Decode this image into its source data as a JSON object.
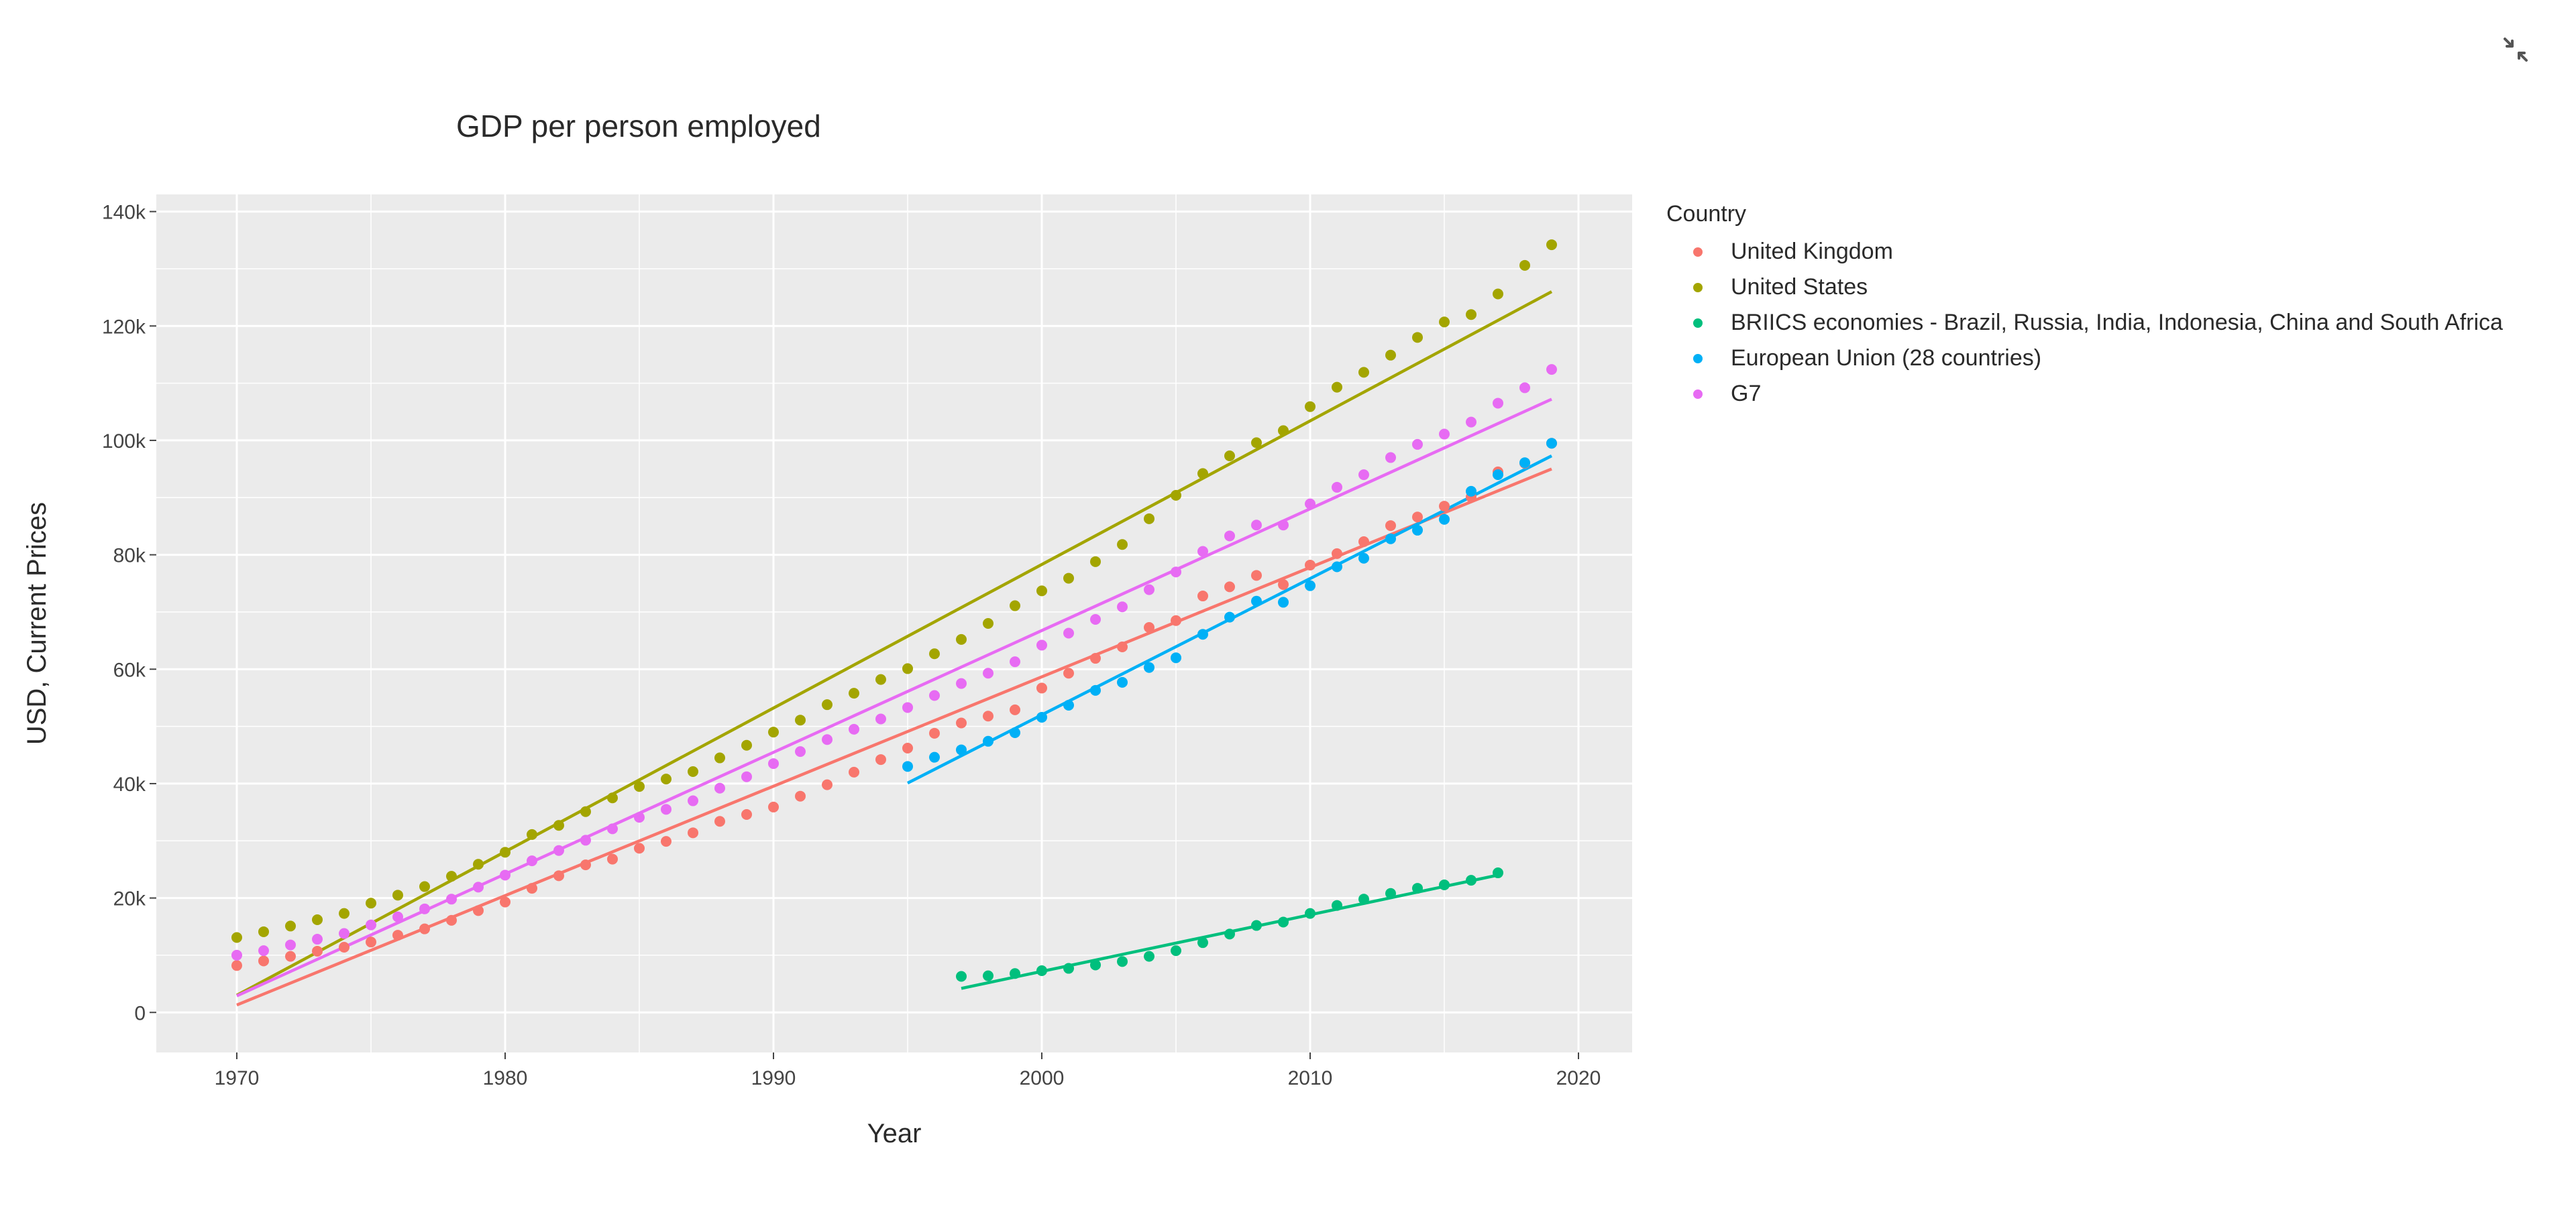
{
  "ui": {
    "exit_fullscreen_icon": "exit-fullscreen-icon"
  },
  "chart_data": {
    "type": "scatter",
    "title": "GDP per person employed",
    "xlabel": "Year",
    "ylabel": "USD, Current Prices",
    "xlim": [
      1967,
      2022
    ],
    "ylim": [
      -7000,
      143000
    ],
    "x_ticks": [
      1970,
      1980,
      1990,
      2000,
      2010,
      2020
    ],
    "x_tick_labels": [
      "1970",
      "1980",
      "1990",
      "2000",
      "2010",
      "2020"
    ],
    "y_ticks": [
      0,
      20000,
      40000,
      60000,
      80000,
      100000,
      120000,
      140000
    ],
    "y_tick_labels": [
      "0",
      "20k",
      "40k",
      "60k",
      "80k",
      "100k",
      "120k",
      "140k"
    ],
    "grid": true,
    "legend_title": "Country",
    "legend_position": "right",
    "trendlines": true,
    "series": [
      {
        "name": "United Kingdom",
        "color": "#F8766D",
        "x": [
          1970,
          1971,
          1972,
          1973,
          1974,
          1975,
          1976,
          1977,
          1978,
          1979,
          1980,
          1981,
          1982,
          1983,
          1984,
          1985,
          1986,
          1987,
          1988,
          1989,
          1990,
          1991,
          1992,
          1993,
          1994,
          1995,
          1996,
          1997,
          1998,
          1999,
          2000,
          2001,
          2002,
          2003,
          2004,
          2005,
          2006,
          2007,
          2008,
          2009,
          2010,
          2011,
          2012,
          2013,
          2014,
          2015,
          2016,
          2017,
          2018,
          2019
        ],
        "y": [
          8200,
          9000,
          9800,
          10700,
          11400,
          12300,
          13500,
          14600,
          16100,
          17800,
          19300,
          21700,
          23900,
          25800,
          26800,
          28700,
          29900,
          31400,
          33400,
          34600,
          35900,
          37800,
          39800,
          42000,
          44200,
          46200,
          48800,
          50600,
          51800,
          52900,
          56700,
          59300,
          61900,
          63900,
          67300,
          68500,
          72800,
          74400,
          76400,
          74800,
          78200,
          80200,
          82300,
          85100,
          86600,
          88500,
          90100,
          94500,
          96000,
          99500
        ],
        "trend": [
          [
            1970,
            1300
          ],
          [
            2019,
            95000
          ]
        ]
      },
      {
        "name": "United States",
        "color": "#A3A500",
        "x": [
          1970,
          1971,
          1972,
          1973,
          1974,
          1975,
          1976,
          1977,
          1978,
          1979,
          1980,
          1981,
          1982,
          1983,
          1984,
          1985,
          1986,
          1987,
          1988,
          1989,
          1990,
          1991,
          1992,
          1993,
          1994,
          1995,
          1996,
          1997,
          1998,
          1999,
          2000,
          2001,
          2002,
          2003,
          2004,
          2005,
          2006,
          2007,
          2008,
          2009,
          2010,
          2011,
          2012,
          2013,
          2014,
          2015,
          2016,
          2017,
          2018,
          2019
        ],
        "y": [
          13100,
          14100,
          15100,
          16200,
          17300,
          19100,
          20500,
          22000,
          23800,
          25900,
          28000,
          31100,
          32700,
          35100,
          37500,
          39500,
          40800,
          42100,
          44500,
          46700,
          49000,
          51100,
          53800,
          55800,
          58200,
          60100,
          62700,
          65200,
          68000,
          71100,
          73700,
          75900,
          78800,
          81800,
          86300,
          90400,
          94200,
          97300,
          99600,
          101700,
          105900,
          109300,
          111900,
          114900,
          118000,
          120700,
          122000,
          125600,
          130600,
          134200
        ],
        "trend": [
          [
            1970,
            3000
          ],
          [
            2019,
            126000
          ]
        ]
      },
      {
        "name": "BRIICS economies - Brazil, Russia, India, Indonesia, China and South Africa",
        "color": "#00BF7D",
        "x": [
          1997,
          1998,
          1999,
          2000,
          2001,
          2002,
          2003,
          2004,
          2005,
          2006,
          2007,
          2008,
          2009,
          2010,
          2011,
          2012,
          2013,
          2014,
          2015,
          2016,
          2017
        ],
        "y": [
          6300,
          6400,
          6800,
          7300,
          7700,
          8300,
          8900,
          9800,
          10800,
          12200,
          13700,
          15200,
          15800,
          17300,
          18700,
          19800,
          20800,
          21700,
          22300,
          23100,
          24400
        ],
        "trend": [
          [
            1997,
            4200
          ],
          [
            2017,
            24000
          ]
        ]
      },
      {
        "name": "European Union (28 countries)",
        "color": "#00B0F6",
        "x": [
          1995,
          1996,
          1997,
          1998,
          1999,
          2000,
          2001,
          2002,
          2003,
          2004,
          2005,
          2006,
          2007,
          2008,
          2009,
          2010,
          2011,
          2012,
          2013,
          2014,
          2015,
          2016,
          2017,
          2018,
          2019
        ],
        "y": [
          43000,
          44600,
          45900,
          47400,
          48900,
          51600,
          53700,
          56300,
          57700,
          60300,
          62000,
          66100,
          69100,
          71900,
          71700,
          74600,
          77900,
          79400,
          82800,
          84300,
          86200,
          91100,
          94000,
          96100,
          99500
        ],
        "trend": [
          [
            1995,
            40100
          ],
          [
            2019,
            97300
          ]
        ]
      },
      {
        "name": "G7",
        "color": "#E76BF3",
        "x": [
          1970,
          1971,
          1972,
          1973,
          1974,
          1975,
          1976,
          1977,
          1978,
          1979,
          1980,
          1981,
          1982,
          1983,
          1984,
          1985,
          1986,
          1987,
          1988,
          1989,
          1990,
          1991,
          1992,
          1993,
          1994,
          1995,
          1996,
          1997,
          1998,
          1999,
          2000,
          2001,
          2002,
          2003,
          2004,
          2005,
          2006,
          2007,
          2008,
          2009,
          2010,
          2011,
          2012,
          2013,
          2014,
          2015,
          2016,
          2017,
          2018,
          2019
        ],
        "y": [
          10000,
          10800,
          11800,
          12800,
          13800,
          15300,
          16700,
          18100,
          19800,
          21900,
          24000,
          26500,
          28300,
          30100,
          32100,
          34100,
          35500,
          37000,
          39200,
          41200,
          43500,
          45600,
          47700,
          49500,
          51300,
          53300,
          55400,
          57500,
          59300,
          61300,
          64200,
          66300,
          68700,
          70900,
          73900,
          77000,
          80600,
          83300,
          85200,
          85200,
          88900,
          91800,
          94000,
          97000,
          99300,
          101100,
          103200,
          106500,
          109200,
          112400
        ],
        "trend": [
          [
            1970,
            2900
          ],
          [
            2019,
            107200
          ]
        ]
      }
    ]
  }
}
